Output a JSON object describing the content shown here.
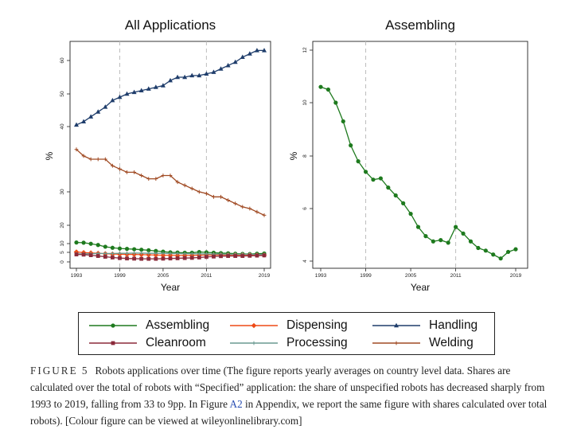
{
  "chart_data": [
    {
      "type": "line",
      "title": "All Applications",
      "xlabel": "Year",
      "ylabel": "%",
      "xlim": [
        1993,
        2019
      ],
      "ylim": [
        0,
        65
      ],
      "xticks": [
        "1993",
        "1999",
        "2005",
        "2011",
        "2019"
      ],
      "yticks": [
        "0",
        "5",
        "10",
        "20",
        "30",
        "40",
        "50",
        "60"
      ],
      "vlines": [
        1999,
        2011
      ],
      "x": [
        1993,
        1994,
        1995,
        1996,
        1997,
        1998,
        1999,
        2000,
        2001,
        2002,
        2003,
        2004,
        2005,
        2006,
        2007,
        2008,
        2009,
        2010,
        2011,
        2012,
        2013,
        2014,
        2015,
        2016,
        2017,
        2018,
        2019
      ],
      "series": [
        {
          "name": "Handling",
          "color": "#1f3d6b",
          "marker": "triangle",
          "values": [
            40.5,
            41.5,
            43,
            44.5,
            46,
            48,
            49,
            50,
            50.5,
            51,
            51.5,
            52,
            52.5,
            54,
            55,
            55,
            55.5,
            55.5,
            56,
            56.5,
            57.5,
            58.5,
            59.5,
            61,
            62,
            63,
            63
          ]
        },
        {
          "name": "Welding",
          "color": "#a04a23",
          "marker": "plus",
          "values": [
            36.5,
            35.5,
            35,
            35,
            35,
            34,
            33.5,
            33,
            33,
            32.5,
            32,
            32,
            32.5,
            32.5,
            31.5,
            31,
            30.5,
            30,
            29.5,
            28.5,
            28.5,
            27.5,
            26.5,
            25.5,
            25,
            24,
            23
          ]
        },
        {
          "name": "Assembling",
          "color": "#1e7a1e",
          "marker": "circle",
          "values": [
            10.6,
            10.5,
            9.9,
            9.2,
            8.2,
            7.6,
            7.2,
            7.0,
            6.8,
            6.5,
            6.2,
            5.8,
            5.4,
            5.0,
            4.9,
            4.8,
            4.8,
            5.2,
            5.0,
            4.8,
            4.6,
            4.5,
            4.3,
            4.2,
            4.1,
            4.3,
            4.4
          ]
        },
        {
          "name": "Dispensing",
          "color": "#ee4a16",
          "marker": "diamond",
          "values": [
            5.2,
            4.9,
            4.7,
            4.5,
            4.3,
            4.1,
            4.0,
            3.9,
            3.9,
            3.8,
            3.7,
            3.6,
            3.5,
            3.5,
            3.4,
            3.4,
            3.4,
            3.5,
            3.6,
            3.6,
            3.7,
            3.7,
            3.7,
            3.7,
            3.7,
            3.6,
            3.6
          ]
        },
        {
          "name": "Processing",
          "color": "#6a9a90",
          "marker": "plus",
          "values": [
            4.2,
            4.2,
            4.3,
            4.4,
            4.4,
            4.4,
            4.5,
            4.5,
            4.6,
            4.6,
            4.5,
            4.5,
            4.5,
            4.4,
            4.4,
            4.3,
            4.3,
            4.2,
            4.2,
            4.1,
            4.1,
            4.0,
            4.0,
            4.0,
            4.0,
            3.9,
            3.9
          ]
        },
        {
          "name": "Cleanroom",
          "color": "#8b2a3a",
          "marker": "square",
          "values": [
            3.9,
            3.8,
            3.5,
            3.1,
            2.7,
            2.3,
            2.0,
            1.8,
            1.7,
            1.6,
            1.6,
            1.6,
            1.7,
            1.8,
            1.9,
            2.0,
            2.1,
            2.3,
            2.6,
            2.8,
            3.0,
            3.1,
            3.1,
            3.1,
            3.2,
            3.3,
            3.4
          ]
        }
      ]
    },
    {
      "type": "line",
      "title": "Assembling",
      "xlabel": "Year",
      "ylabel": "%",
      "xlim": [
        1993,
        2019
      ],
      "ylim": [
        3.8,
        12
      ],
      "xticks": [
        "1993",
        "1999",
        "2005",
        "2011",
        "2019"
      ],
      "yticks": [
        "4",
        "6",
        "8",
        "10",
        "12"
      ],
      "vlines": [
        1999,
        2011
      ],
      "x": [
        1993,
        1994,
        1995,
        1996,
        1997,
        1998,
        1999,
        2000,
        2001,
        2002,
        2003,
        2004,
        2005,
        2006,
        2007,
        2008,
        2009,
        2010,
        2011,
        2012,
        2013,
        2014,
        2015,
        2016,
        2017,
        2018,
        2019
      ],
      "series": [
        {
          "name": "Assembling",
          "color": "#1e7a1e",
          "marker": "circle",
          "values": [
            10.6,
            10.5,
            10.0,
            9.3,
            8.4,
            7.8,
            7.4,
            7.1,
            7.15,
            6.8,
            6.5,
            6.2,
            5.8,
            5.3,
            4.95,
            4.75,
            4.8,
            4.7,
            5.3,
            5.05,
            4.75,
            4.5,
            4.4,
            4.25,
            4.1,
            4.35,
            4.45
          ]
        }
      ]
    }
  ],
  "legend": [
    {
      "name": "Assembling",
      "color": "#1e7a1e",
      "marker": "circle"
    },
    {
      "name": "Dispensing",
      "color": "#ee4a16",
      "marker": "diamond"
    },
    {
      "name": "Handling",
      "color": "#1f3d6b",
      "marker": "triangle"
    },
    {
      "name": "Cleanroom",
      "color": "#8b2a3a",
      "marker": "square"
    },
    {
      "name": "Processing",
      "color": "#6a9a90",
      "marker": "plus"
    },
    {
      "name": "Welding",
      "color": "#a04a23",
      "marker": "plus"
    }
  ],
  "caption": {
    "label": "FIGURE 5",
    "part1": "Robots applications over time (The figure reports yearly averages on country level data. Shares are calculated over the total of robots with “Specified” application: the share of unspecified robots has decreased sharply from 1993 to 2019, falling from 33 to 9pp. In Figure ",
    "link": "A2",
    "part2": " in Appendix, we report the same figure with shares calculated over total robots). [Colour figure can be viewed at wileyonlinelibrary.com]"
  }
}
